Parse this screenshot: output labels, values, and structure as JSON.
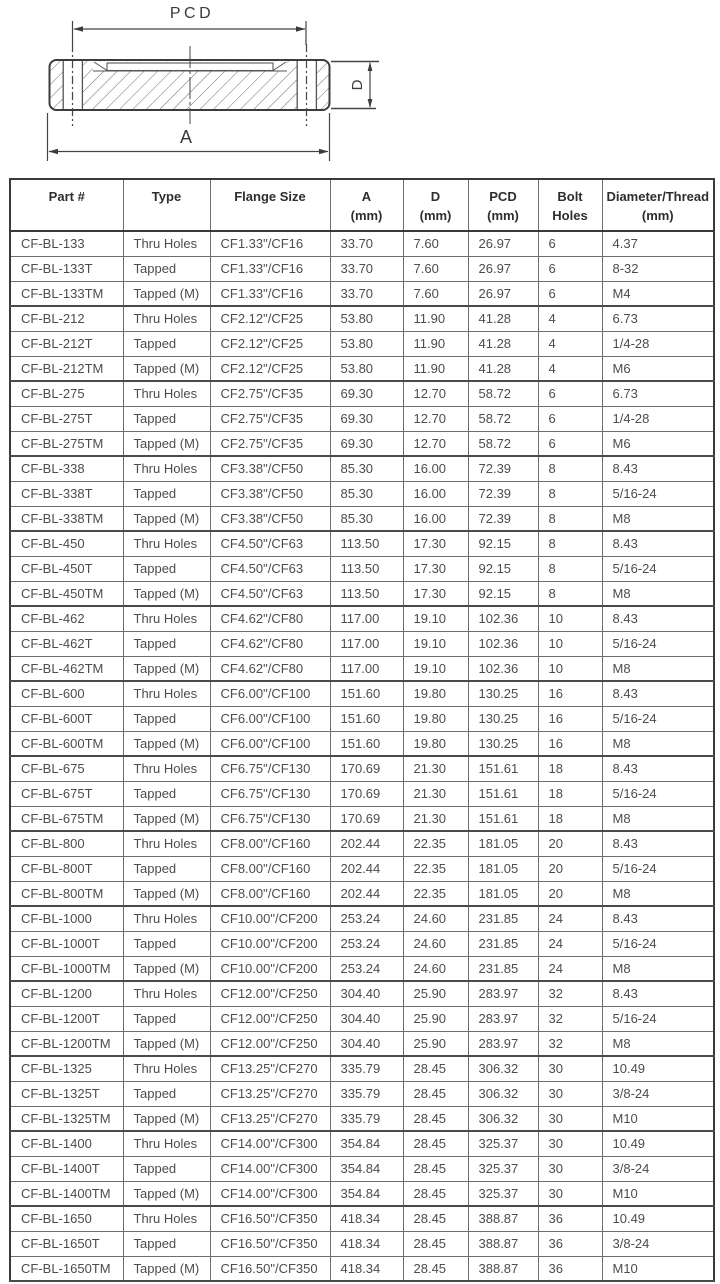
{
  "diagram": {
    "labels": {
      "pcd": "PCD",
      "a": "A",
      "d": "D"
    }
  },
  "table": {
    "headers": [
      {
        "line1": "Part #",
        "line2": ""
      },
      {
        "line1": "Type",
        "line2": ""
      },
      {
        "line1": "Flange Size",
        "line2": ""
      },
      {
        "line1": "A",
        "line2": "(mm)"
      },
      {
        "line1": "D",
        "line2": "(mm)"
      },
      {
        "line1": "PCD",
        "line2": "(mm)"
      },
      {
        "line1": "Bolt",
        "line2": "Holes"
      },
      {
        "line1": "Diameter/Thread",
        "line2": "(mm)"
      }
    ],
    "rows": [
      [
        "CF-BL-133",
        "Thru Holes",
        "CF1.33\"/CF16",
        "33.70",
        "7.60",
        "26.97",
        "6",
        "4.37"
      ],
      [
        "CF-BL-133T",
        "Tapped",
        "CF1.33\"/CF16",
        "33.70",
        "7.60",
        "26.97",
        "6",
        "8-32"
      ],
      [
        "CF-BL-133TM",
        "Tapped (M)",
        "CF1.33\"/CF16",
        "33.70",
        "7.60",
        "26.97",
        "6",
        "M4"
      ],
      [
        "CF-BL-212",
        "Thru Holes",
        "CF2.12\"/CF25",
        "53.80",
        "11.90",
        "41.28",
        "4",
        "6.73"
      ],
      [
        "CF-BL-212T",
        "Tapped",
        "CF2.12\"/CF25",
        "53.80",
        "11.90",
        "41.28",
        "4",
        "1/4-28"
      ],
      [
        "CF-BL-212TM",
        "Tapped (M)",
        "CF2.12\"/CF25",
        "53.80",
        "11.90",
        "41.28",
        "4",
        "M6"
      ],
      [
        "CF-BL-275",
        "Thru Holes",
        "CF2.75\"/CF35",
        "69.30",
        "12.70",
        "58.72",
        "6",
        "6.73"
      ],
      [
        "CF-BL-275T",
        "Tapped",
        "CF2.75\"/CF35",
        "69.30",
        "12.70",
        "58.72",
        "6",
        "1/4-28"
      ],
      [
        "CF-BL-275TM",
        "Tapped (M)",
        "CF2.75\"/CF35",
        "69.30",
        "12.70",
        "58.72",
        "6",
        "M6"
      ],
      [
        "CF-BL-338",
        "Thru Holes",
        "CF3.38\"/CF50",
        "85.30",
        "16.00",
        "72.39",
        "8",
        "8.43"
      ],
      [
        "CF-BL-338T",
        "Tapped",
        "CF3.38\"/CF50",
        "85.30",
        "16.00",
        "72.39",
        "8",
        "5/16-24"
      ],
      [
        "CF-BL-338TM",
        "Tapped (M)",
        "CF3.38\"/CF50",
        "85.30",
        "16.00",
        "72.39",
        "8",
        "M8"
      ],
      [
        "CF-BL-450",
        "Thru Holes",
        "CF4.50\"/CF63",
        "113.50",
        "17.30",
        "92.15",
        "8",
        "8.43"
      ],
      [
        "CF-BL-450T",
        "Tapped",
        "CF4.50\"/CF63",
        "113.50",
        "17.30",
        "92.15",
        "8",
        "5/16-24"
      ],
      [
        "CF-BL-450TM",
        "Tapped (M)",
        "CF4.50\"/CF63",
        "113.50",
        "17.30",
        "92.15",
        "8",
        "M8"
      ],
      [
        "CF-BL-462",
        "Thru Holes",
        "CF4.62\"/CF80",
        "117.00",
        "19.10",
        "102.36",
        "10",
        "8.43"
      ],
      [
        "CF-BL-462T",
        "Tapped",
        "CF4.62\"/CF80",
        "117.00",
        "19.10",
        "102.36",
        "10",
        "5/16-24"
      ],
      [
        "CF-BL-462TM",
        "Tapped (M)",
        "CF4.62\"/CF80",
        "117.00",
        "19.10",
        "102.36",
        "10",
        "M8"
      ],
      [
        "CF-BL-600",
        "Thru Holes",
        "CF6.00\"/CF100",
        "151.60",
        "19.80",
        "130.25",
        "16",
        "8.43"
      ],
      [
        "CF-BL-600T",
        "Tapped",
        "CF6.00\"/CF100",
        "151.60",
        "19.80",
        "130.25",
        "16",
        "5/16-24"
      ],
      [
        "CF-BL-600TM",
        "Tapped (M)",
        "CF6.00\"/CF100",
        "151.60",
        "19.80",
        "130.25",
        "16",
        "M8"
      ],
      [
        "CF-BL-675",
        "Thru Holes",
        "CF6.75\"/CF130",
        "170.69",
        "21.30",
        "151.61",
        "18",
        "8.43"
      ],
      [
        "CF-BL-675T",
        "Tapped",
        "CF6.75\"/CF130",
        "170.69",
        "21.30",
        "151.61",
        "18",
        "5/16-24"
      ],
      [
        "CF-BL-675TM",
        "Tapped (M)",
        "CF6.75\"/CF130",
        "170.69",
        "21.30",
        "151.61",
        "18",
        "M8"
      ],
      [
        "CF-BL-800",
        "Thru Holes",
        "CF8.00\"/CF160",
        "202.44",
        "22.35",
        "181.05",
        "20",
        "8.43"
      ],
      [
        "CF-BL-800T",
        "Tapped",
        "CF8.00\"/CF160",
        "202.44",
        "22.35",
        "181.05",
        "20",
        "5/16-24"
      ],
      [
        "CF-BL-800TM",
        "Tapped (M)",
        "CF8.00\"/CF160",
        "202.44",
        "22.35",
        "181.05",
        "20",
        "M8"
      ],
      [
        "CF-BL-1000",
        "Thru Holes",
        "CF10.00\"/CF200",
        "253.24",
        "24.60",
        "231.85",
        "24",
        "8.43"
      ],
      [
        "CF-BL-1000T",
        "Tapped",
        "CF10.00\"/CF200",
        "253.24",
        "24.60",
        "231.85",
        "24",
        "5/16-24"
      ],
      [
        "CF-BL-1000TM",
        "Tapped (M)",
        "CF10.00\"/CF200",
        "253.24",
        "24.60",
        "231.85",
        "24",
        "M8"
      ],
      [
        "CF-BL-1200",
        "Thru Holes",
        "CF12.00\"/CF250",
        "304.40",
        "25.90",
        "283.97",
        "32",
        "8.43"
      ],
      [
        "CF-BL-1200T",
        "Tapped",
        "CF12.00\"/CF250",
        "304.40",
        "25.90",
        "283.97",
        "32",
        "5/16-24"
      ],
      [
        "CF-BL-1200TM",
        "Tapped (M)",
        "CF12.00\"/CF250",
        "304.40",
        "25.90",
        "283.97",
        "32",
        "M8"
      ],
      [
        "CF-BL-1325",
        "Thru Holes",
        "CF13.25\"/CF270",
        "335.79",
        "28.45",
        "306.32",
        "30",
        "10.49"
      ],
      [
        "CF-BL-1325T",
        "Tapped",
        "CF13.25\"/CF270",
        "335.79",
        "28.45",
        "306.32",
        "30",
        "3/8-24"
      ],
      [
        "CF-BL-1325TM",
        "Tapped (M)",
        "CF13.25\"/CF270",
        "335.79",
        "28.45",
        "306.32",
        "30",
        "M10"
      ],
      [
        "CF-BL-1400",
        "Thru Holes",
        "CF14.00\"/CF300",
        "354.84",
        "28.45",
        "325.37",
        "30",
        "10.49"
      ],
      [
        "CF-BL-1400T",
        "Tapped",
        "CF14.00\"/CF300",
        "354.84",
        "28.45",
        "325.37",
        "30",
        "3/8-24"
      ],
      [
        "CF-BL-1400TM",
        "Tapped (M)",
        "CF14.00\"/CF300",
        "354.84",
        "28.45",
        "325.37",
        "30",
        "M10"
      ],
      [
        "CF-BL-1650",
        "Thru Holes",
        "CF16.50\"/CF350",
        "418.34",
        "28.45",
        "388.87",
        "36",
        "10.49"
      ],
      [
        "CF-BL-1650T",
        "Tapped",
        "CF16.50\"/CF350",
        "418.34",
        "28.45",
        "388.87",
        "36",
        "3/8-24"
      ],
      [
        "CF-BL-1650TM",
        "Tapped (M)",
        "CF16.50\"/CF350",
        "418.34",
        "28.45",
        "388.87",
        "36",
        "M10"
      ]
    ]
  },
  "colors": {
    "line": "#3c3c3c",
    "hatch": "#6e6e6e",
    "body_text": "#4c4c4c",
    "header_text": "#2e2e2e",
    "background": "#ffffff"
  }
}
